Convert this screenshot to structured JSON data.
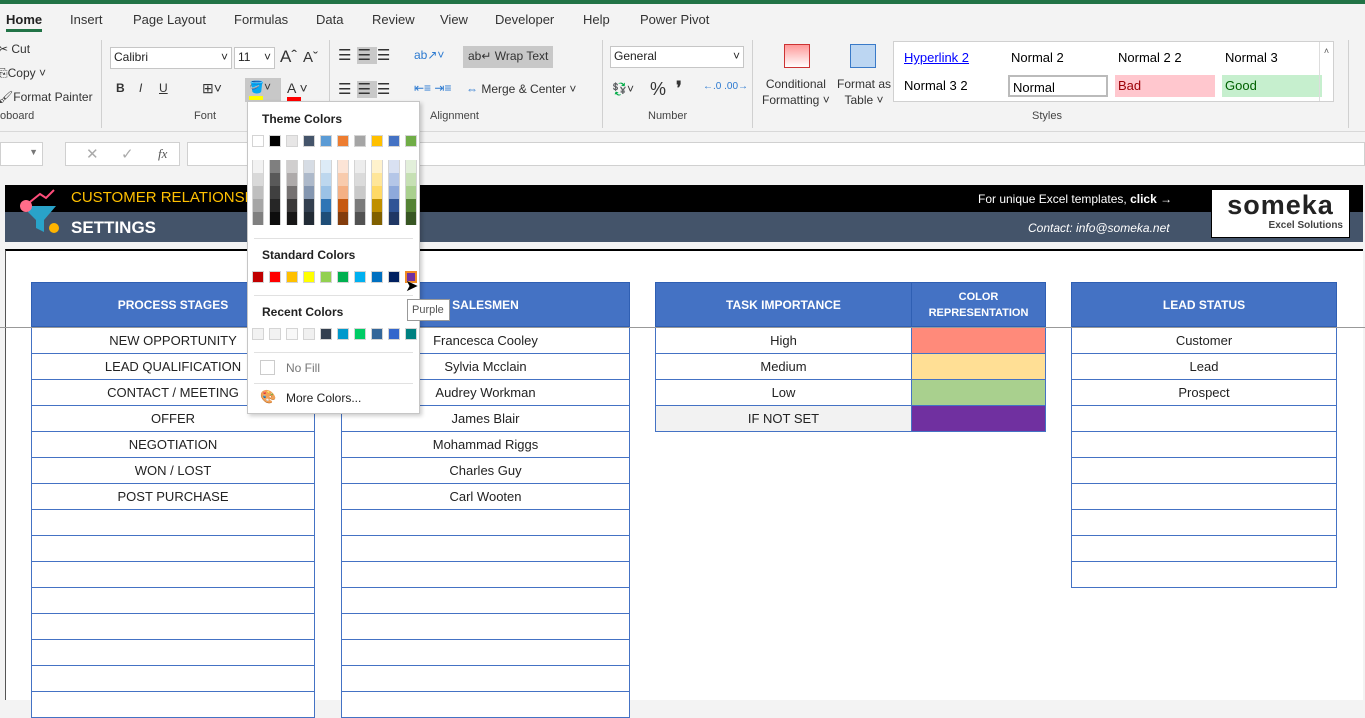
{
  "ribbon": {
    "tabs": [
      "Home",
      "Insert",
      "Page Layout",
      "Formulas",
      "Data",
      "Review",
      "View",
      "Developer",
      "Help",
      "Power Pivot"
    ],
    "clipboard": {
      "cut": "Cut",
      "copy": "Copy",
      "format_painter": "Format Painter",
      "group": "oboard"
    },
    "font": {
      "name": "Calibri",
      "size": "11",
      "group": "Font",
      "bold": "B",
      "italic": "I",
      "underline": "U"
    },
    "alignment": {
      "wrap": "Wrap Text",
      "merge": "Merge & Center",
      "group": "Alignment"
    },
    "number": {
      "format": "General",
      "group": "Number",
      "percent": "%",
      "comma": "❜"
    },
    "styles": {
      "conditional": "Conditional",
      "conditional2": "Formatting",
      "format_table": "Format as",
      "format_table2": "Table",
      "group": "Styles",
      "cells": [
        {
          "label": "Hyperlink 2",
          "bg": "#ffffff",
          "fg": "#0000ff"
        },
        {
          "label": "Normal 2",
          "bg": "#ffffff",
          "fg": "#000000"
        },
        {
          "label": "Normal 2 2",
          "bg": "#ffffff",
          "fg": "#000000"
        },
        {
          "label": "Normal 3",
          "bg": "#ffffff",
          "fg": "#000000"
        },
        {
          "label": "Normal 3 2",
          "bg": "#ffffff",
          "fg": "#000000"
        },
        {
          "label": "Normal",
          "bg": "#ffffff",
          "fg": "#000000"
        },
        {
          "label": "Bad",
          "bg": "#ffc7ce",
          "fg": "#9c0006"
        },
        {
          "label": "Good",
          "bg": "#c6efce",
          "fg": "#006100"
        }
      ]
    },
    "fill_color": "#ffff00",
    "font_color": "#ff0000"
  },
  "formula_bar": {
    "fx": "fx"
  },
  "banner": {
    "title": "CUSTOMER RELATIONSHI",
    "subtitle": "SETTINGS",
    "promo": "For unique Excel templates, ",
    "promo_bold": "click →",
    "contact": "Contact: info@someka.net",
    "logo": "someka",
    "logo_sub": "Excel Solutions"
  },
  "tables": {
    "process": {
      "header": "PROCESS STAGES",
      "rows": [
        "NEW OPPORTUNITY",
        "LEAD QUALIFICATION",
        "CONTACT / MEETING",
        "OFFER",
        "NEGOTIATION",
        "WON / LOST",
        "POST PURCHASE"
      ]
    },
    "salesmen": {
      "header": "SALESMEN",
      "rows": [
        "Francesca Cooley",
        "Sylvia Mcclain",
        "Audrey Workman",
        "James Blair",
        "Mohammad Riggs",
        "Charles Guy",
        "Carl Wooten"
      ]
    },
    "importance": {
      "header": "TASK IMPORTANCE",
      "color_header": "COLOR REPRESENTATION",
      "rows": [
        {
          "label": "High",
          "color": "#ff8a7a"
        },
        {
          "label": "Medium",
          "color": "#ffdf95"
        },
        {
          "label": "Low",
          "color": "#a9d08e"
        },
        {
          "label": "IF NOT SET",
          "color": "#7030a0"
        }
      ]
    },
    "lead": {
      "header": "LEAD STATUS",
      "rows": [
        "Customer",
        "Lead",
        "Prospect"
      ]
    }
  },
  "fill_dropdown": {
    "theme_label": "Theme Colors",
    "standard_label": "Standard Colors",
    "recent_label": "Recent Colors",
    "no_fill": "No Fill",
    "more_colors": "More Colors...",
    "theme": [
      "#ffffff",
      "#000000",
      "#e7e6e6",
      "#44546a",
      "#5b9bd5",
      "#ed7d31",
      "#a5a5a5",
      "#ffc000",
      "#4472c4",
      "#70ad47"
    ],
    "shades": [
      [
        "#f2f2f2",
        "#d9d9d9",
        "#bfbfbf",
        "#a6a6a6",
        "#808080"
      ],
      [
        "#7f7f7f",
        "#595959",
        "#404040",
        "#262626",
        "#0d0d0d"
      ],
      [
        "#d0cece",
        "#aeaaaa",
        "#757171",
        "#3a3838",
        "#171616"
      ],
      [
        "#d6dce4",
        "#adb9ca",
        "#8496b0",
        "#333f4f",
        "#222b35"
      ],
      [
        "#ddebf7",
        "#bdd7ee",
        "#9bc2e6",
        "#2f75b5",
        "#1f4e78"
      ],
      [
        "#fce4d6",
        "#f8cbad",
        "#f4b084",
        "#c65911",
        "#833c0c"
      ],
      [
        "#ededed",
        "#dbdbdb",
        "#c9c9c9",
        "#7b7b7b",
        "#525252"
      ],
      [
        "#fff2cc",
        "#ffe699",
        "#ffd966",
        "#bf8f00",
        "#806000"
      ],
      [
        "#d9e1f2",
        "#b4c6e7",
        "#8ea9db",
        "#305496",
        "#203764"
      ],
      [
        "#e2efda",
        "#c6e0b4",
        "#a9d08e",
        "#548235",
        "#375623"
      ]
    ],
    "standard": [
      "#c00000",
      "#ff0000",
      "#ffc000",
      "#ffff00",
      "#92d050",
      "#00b050",
      "#00b0f0",
      "#0070c0",
      "#002060",
      "#7030a0"
    ],
    "recent": [
      "#f2f2f2",
      "#f2f2f2",
      "#f8f8f8",
      "#f0f0f0",
      "#333f4f",
      "#0099cc",
      "#00cc66",
      "#336699",
      "#3366cc",
      "#008080"
    ],
    "hovered": "Purple"
  }
}
